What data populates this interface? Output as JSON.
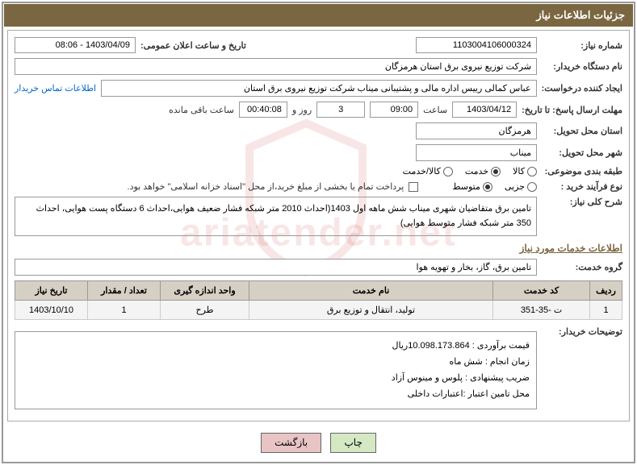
{
  "header": {
    "title": "جزئیات اطلاعات نیاز"
  },
  "form": {
    "need_no_label": "شماره نیاز:",
    "need_no": "1103004106000324",
    "announce_label": "تاریخ و ساعت اعلان عمومی:",
    "announce_value": "1403/04/09 - 08:06",
    "buyer_label": "نام دستگاه خریدار:",
    "buyer_value": "شرکت توزیع نیروی برق استان هرمزگان",
    "requester_label": "ایجاد کننده درخواست:",
    "requester_value": "عباس کمالی رییس اداره مالی و پشتیبانی میناب شرکت توزیع نیروی برق استان",
    "contact_link": "اطلاعات تماس خریدار",
    "deadline_label": "مهلت ارسال پاسخ: تا تاریخ:",
    "deadline_date": "1403/04/12",
    "time_label": "ساعت",
    "deadline_time": "09:00",
    "days_value": "3",
    "days_text": "روز و",
    "countdown": "00:40:08",
    "remaining_text": "ساعت باقی مانده",
    "province_label": "استان محل تحویل:",
    "province_value": "هرمزگان",
    "city_label": "شهر محل تحویل:",
    "city_value": "میناب",
    "category_label": "طبقه بندی موضوعی:",
    "cat_goods": "کالا",
    "cat_service": "خدمت",
    "cat_goods_service": "کالا/خدمت",
    "process_label": "نوع فرآیند خرید :",
    "proc_partial": "جزیی",
    "proc_medium": "متوسط",
    "payment_note": "پرداخت تمام یا بخشی از مبلغ خرید،از محل \"اسناد خزانه اسلامی\" خواهد بود.",
    "desc_label": "شرح کلی نیاز:",
    "desc_value": "تامین برق متقاضیان شهری میناب شش ماهه اول 1403(احداث 2010 متر شبکه فشار ضعیف هوایی،احداث 6 دستگاه پست هوایی، احداث 350 متر شبکه فشار متوسط هوایی)"
  },
  "section": {
    "services_title": "اطلاعات خدمات مورد نیاز",
    "group_label": "گروه خدمت:",
    "group_value": "تامین برق، گاز، بخار و تهویه هوا"
  },
  "table": {
    "columns": [
      "ردیف",
      "کد خدمت",
      "نام خدمت",
      "واحد اندازه گیری",
      "تعداد / مقدار",
      "تاریخ نیاز"
    ],
    "col_widths": [
      "40px",
      "120px",
      "auto",
      "110px",
      "90px",
      "90px"
    ],
    "header_bg": "#d6d0c4",
    "cell_bg": "#f4f4f4",
    "rows": [
      [
        "1",
        "ت -35-351",
        "تولید، انتقال و توزیع برق",
        "طرح",
        "1",
        "1403/10/10"
      ]
    ]
  },
  "notes": {
    "label": "توضیحات خریدار:",
    "lines": [
      "قیمت برآوردی : 10.098.173.864ریال",
      "زمان انجام : شش ماه",
      "ضریب پیشنهادی : پلوس و مینوس آزاد",
      "محل تامین اعتبار :اعتبارات داخلی"
    ]
  },
  "buttons": {
    "print": "چاپ",
    "back": "بازگشت"
  },
  "watermark": "ariatender.net",
  "colors": {
    "header_bg": "#7a6640",
    "header_text": "#ffffff",
    "border": "#999999",
    "link": "#0066cc",
    "section_title": "#7a6640"
  }
}
